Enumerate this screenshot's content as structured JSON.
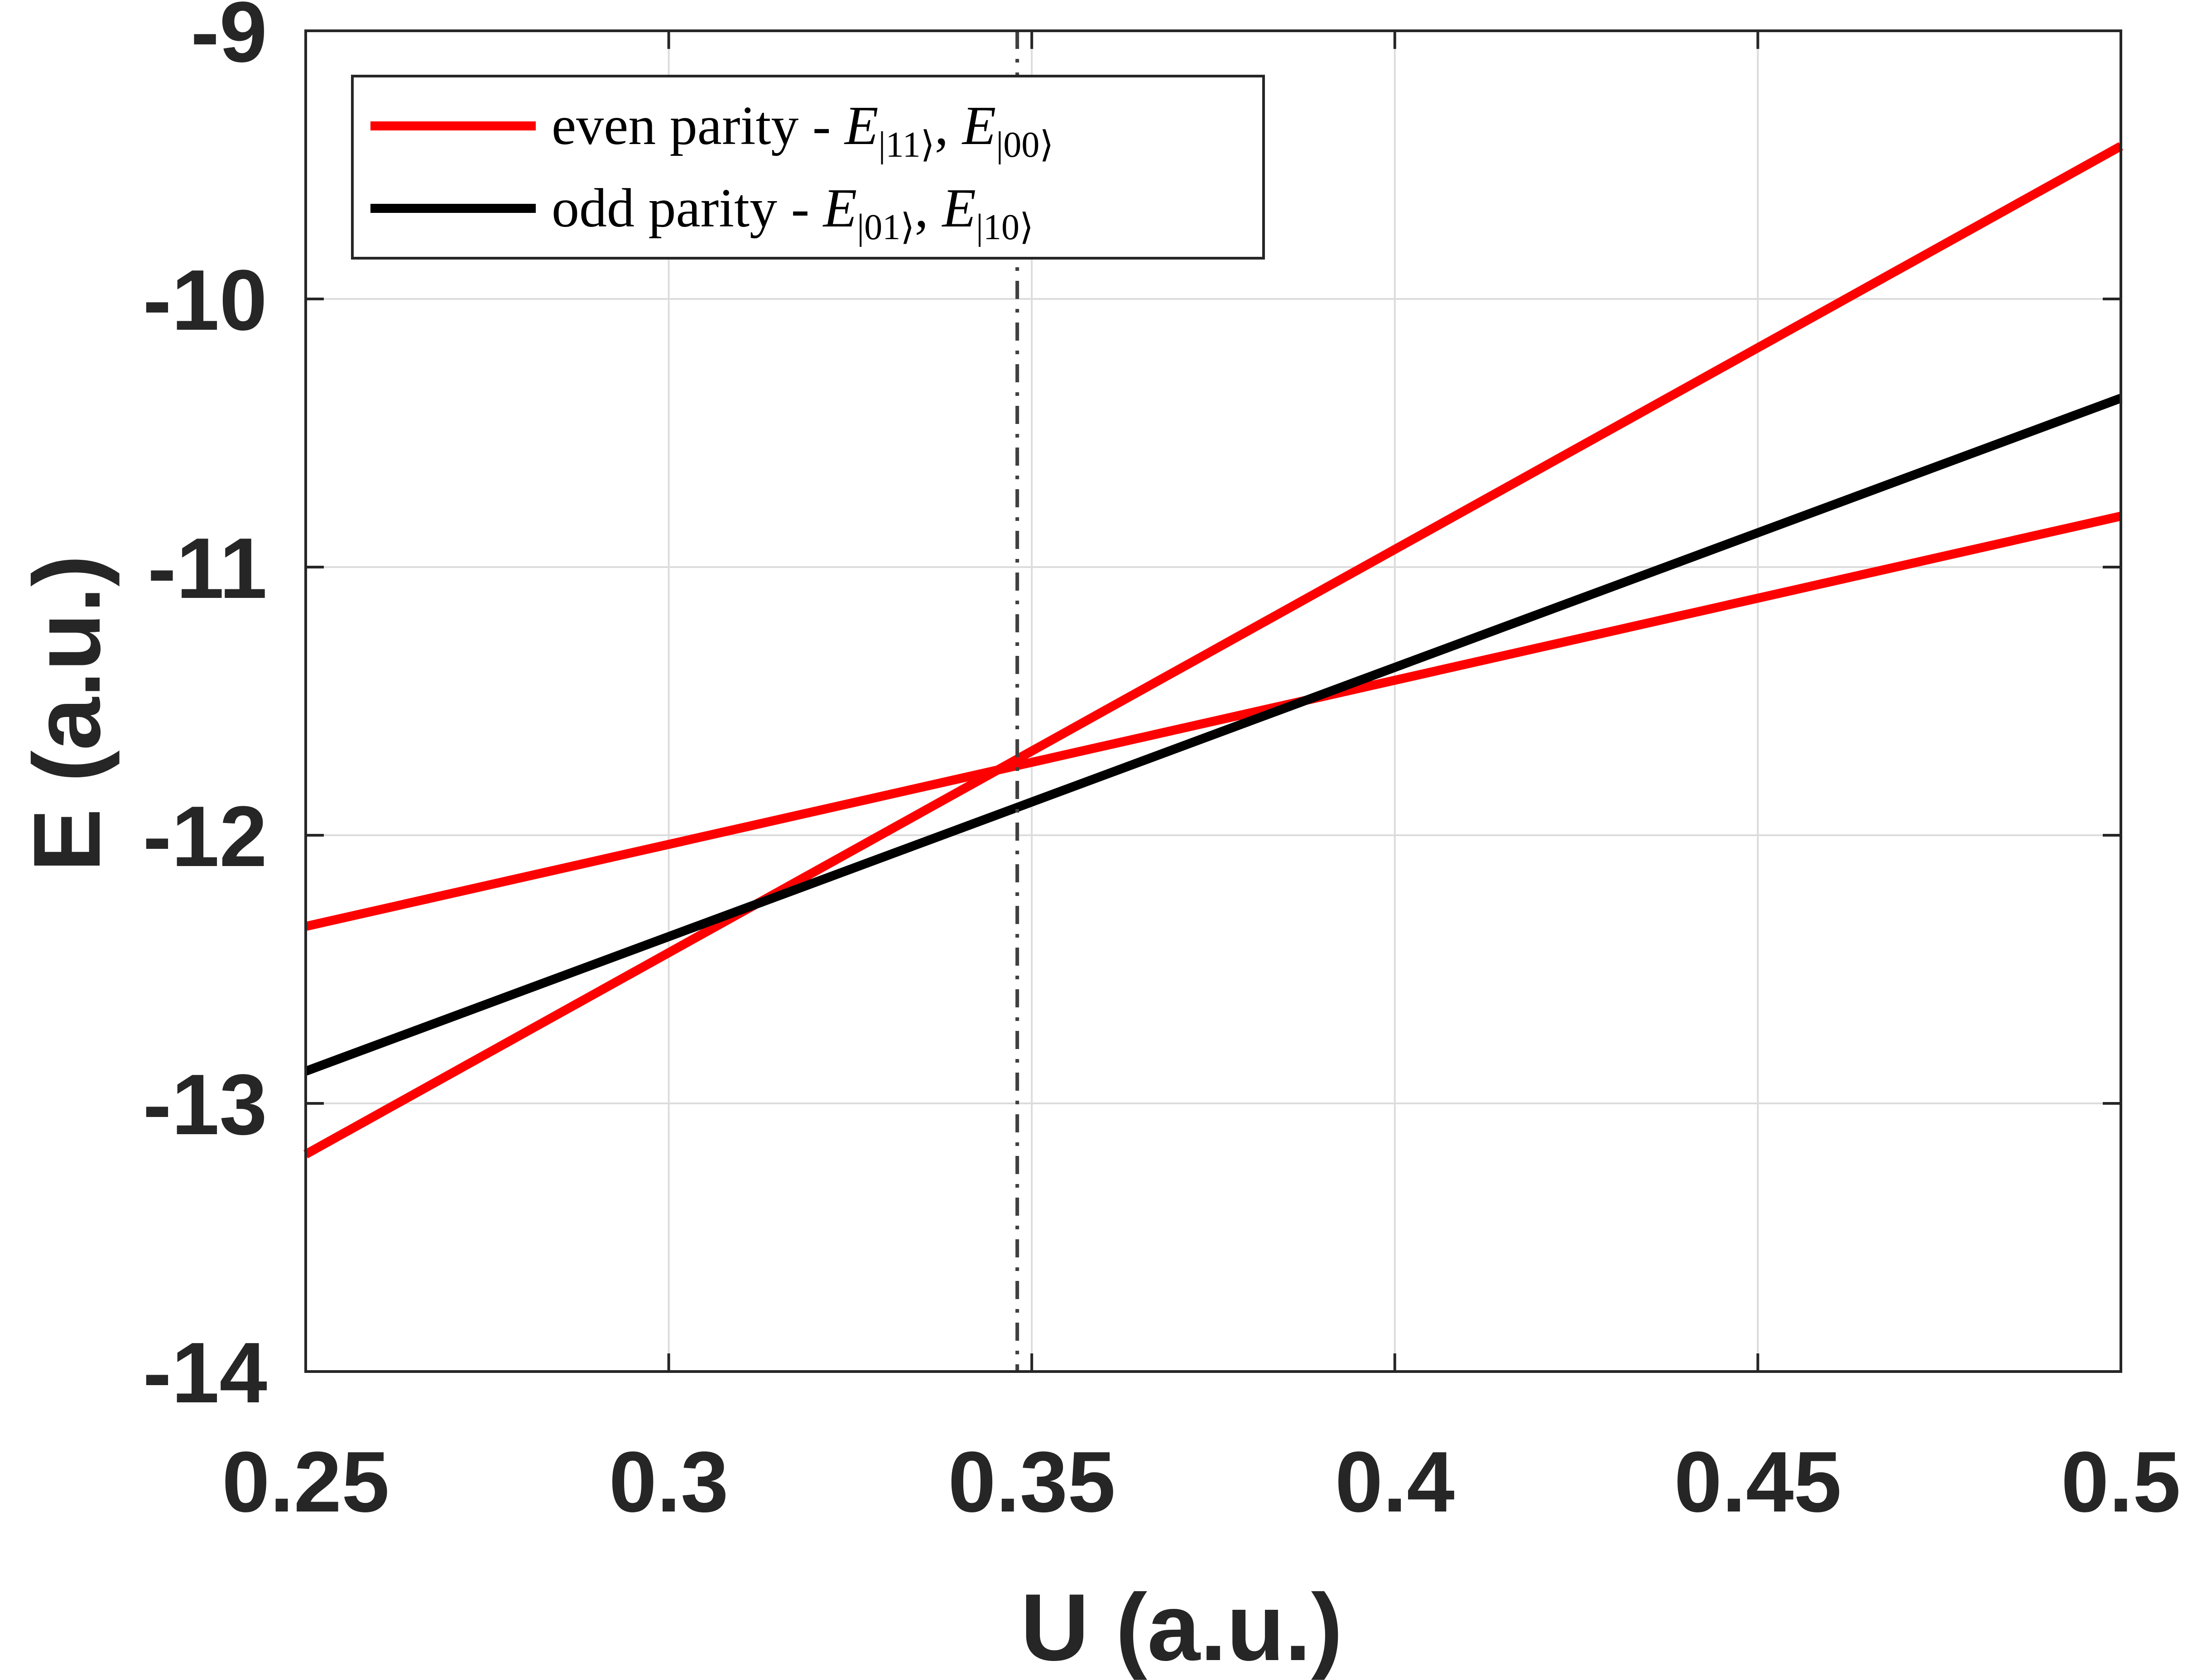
{
  "chart_data": {
    "type": "line",
    "xlabel": "U (a.u.)",
    "ylabel": "E (a.u.)",
    "xlim": [
      0.25,
      0.5
    ],
    "ylim": [
      -14,
      -9
    ],
    "xticks": [
      0.25,
      0.3,
      0.35,
      0.4,
      0.45,
      0.5
    ],
    "xtick_labels": [
      "0.25",
      "0.3",
      "0.35",
      "0.4",
      "0.45",
      "0.5"
    ],
    "yticks": [
      -14,
      -13,
      -12,
      -11,
      -10,
      -9
    ],
    "ytick_labels": [
      "-14",
      "-13",
      "-12",
      "-11",
      "-10",
      "-9"
    ],
    "grid": true,
    "legend_position": "top-left",
    "legend": [
      {
        "prefix": "even parity - ",
        "terms": [
          {
            "E": "E",
            "sub": "|11⟩"
          },
          {
            "E": "E",
            "sub": "|00⟩"
          }
        ],
        "color": "#ff0000"
      },
      {
        "prefix": "odd parity - ",
        "terms": [
          {
            "E": "E",
            "sub": "|01⟩"
          },
          {
            "E": "E",
            "sub": "|10⟩"
          }
        ],
        "color": "#000000"
      }
    ],
    "series": [
      {
        "group": "even",
        "color": "#ff0000",
        "x": [
          0.25,
          0.5
        ],
        "y": [
          -13.19,
          -9.43
        ]
      },
      {
        "group": "even",
        "color": "#ff0000",
        "x": [
          0.25,
          0.5
        ],
        "y": [
          -12.34,
          -10.81
        ]
      },
      {
        "group": "odd",
        "color": "#000000",
        "x": [
          0.25,
          0.5
        ],
        "y": [
          -12.88,
          -10.37
        ]
      }
    ],
    "vline": {
      "x": 0.348,
      "style": "dash-dot",
      "color": "#404040"
    }
  }
}
